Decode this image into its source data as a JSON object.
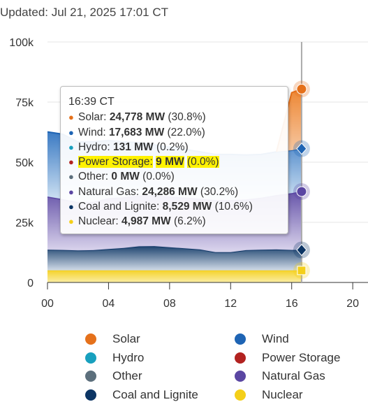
{
  "header": {
    "updated": "Updated: Jul 21, 2025 17:01 CT"
  },
  "tooltip": {
    "time": "16:39 CT",
    "rows": [
      {
        "label": "Solar:",
        "value": "24,778 MW",
        "pct": "(30.8%)",
        "color": "#e5711b"
      },
      {
        "label": "Wind:",
        "value": "17,683 MW",
        "pct": "(22.0%)",
        "color": "#1e64b4"
      },
      {
        "label": "Hydro:",
        "value": "131 MW",
        "pct": "(0.2%)",
        "color": "#18a0be"
      },
      {
        "label": "Power Storage:",
        "value": "9 MW",
        "pct": "(0.0%)",
        "color": "#b22220"
      },
      {
        "label": "Other:",
        "value": "0 MW",
        "pct": "(0.0%)",
        "color": "#5c6f7c"
      },
      {
        "label": "Natural Gas:",
        "value": "24,286 MW",
        "pct": "(30.2%)",
        "color": "#5a46a2"
      },
      {
        "label": "Coal and Lignite:",
        "value": "8,529 MW",
        "pct": "(10.6%)",
        "color": "#0c3564"
      },
      {
        "label": "Nuclear:",
        "value": "4,987 MW",
        "pct": "(6.2%)",
        "color": "#f4cf19"
      }
    ]
  },
  "legend": {
    "items": [
      {
        "label": "Solar",
        "color": "#e5711b"
      },
      {
        "label": "Wind",
        "color": "#1e64b4"
      },
      {
        "label": "Hydro",
        "color": "#18a0be"
      },
      {
        "label": "Power Storage",
        "color": "#b22220"
      },
      {
        "label": "Other",
        "color": "#5c6f7c"
      },
      {
        "label": "Natural Gas",
        "color": "#5a46a2"
      },
      {
        "label": "Coal and Lignite",
        "color": "#0c3564"
      },
      {
        "label": "Nuclear",
        "color": "#f4cf19"
      }
    ]
  },
  "chart_data": {
    "type": "area",
    "stacked": true,
    "x_unit": "hour",
    "xlim": [
      0,
      21
    ],
    "ylim": [
      0,
      100000
    ],
    "x_ticks": [
      0,
      4,
      8,
      12,
      16,
      20
    ],
    "x_tick_labels": [
      "00",
      "04",
      "08",
      "12",
      "16",
      "20"
    ],
    "y_ticks": [
      0,
      25000,
      50000,
      75000,
      100000
    ],
    "y_tick_labels": [
      "0",
      "25k",
      "50k",
      "75k",
      "100k"
    ],
    "grid": "horizontal",
    "legend_position": "bottom",
    "hover_x": 16.65,
    "x": [
      0,
      1,
      2,
      3,
      4,
      5,
      6,
      7,
      8,
      9,
      10,
      11,
      12,
      13,
      14,
      15,
      16,
      16.65
    ],
    "series": [
      {
        "name": "Nuclear",
        "color": "#f4cf19",
        "values": [
          4990,
          4990,
          4990,
          4990,
          4990,
          4990,
          4990,
          4990,
          4990,
          4990,
          4990,
          4990,
          4990,
          4990,
          4990,
          4990,
          4990,
          4987
        ]
      },
      {
        "name": "Coal and Lignite",
        "color": "#0c3564",
        "values": [
          8600,
          8500,
          8300,
          8400,
          8900,
          9300,
          10000,
          10100,
          9600,
          9200,
          8700,
          7600,
          7600,
          8400,
          8600,
          8700,
          8500,
          8529
        ]
      },
      {
        "name": "Natural Gas",
        "color": "#5a46a2",
        "values": [
          22000,
          21000,
          20000,
          20000,
          21000,
          21000,
          21000,
          21000,
          21000,
          21000,
          21000,
          21500,
          21500,
          21000,
          21500,
          22500,
          23500,
          24286
        ]
      },
      {
        "name": "Other",
        "color": "#5c6f7c",
        "values": [
          0,
          0,
          0,
          0,
          0,
          0,
          0,
          0,
          0,
          0,
          0,
          0,
          0,
          0,
          0,
          0,
          0,
          0
        ]
      },
      {
        "name": "Power Storage",
        "color": "#b22220",
        "values": [
          9,
          9,
          9,
          9,
          9,
          9,
          9,
          9,
          9,
          9,
          9,
          9,
          9,
          9,
          9,
          9,
          9,
          9
        ]
      },
      {
        "name": "Hydro",
        "color": "#18a0be",
        "values": [
          131,
          131,
          131,
          131,
          131,
          131,
          131,
          131,
          131,
          131,
          131,
          131,
          131,
          131,
          131,
          131,
          131,
          131
        ]
      },
      {
        "name": "Wind",
        "color": "#1e64b4",
        "values": [
          26900,
          27000,
          25000,
          25000,
          24000,
          23000,
          22000,
          21000,
          20500,
          20000,
          19500,
          19000,
          19000,
          18500,
          18000,
          18000,
          17800,
          17683
        ]
      },
      {
        "name": "Solar",
        "color": "#e5711b",
        "values": [
          0,
          0,
          0,
          0,
          0,
          0,
          0,
          0,
          0,
          0,
          0,
          0,
          0,
          0,
          0,
          0,
          24000,
          24778
        ]
      }
    ]
  }
}
